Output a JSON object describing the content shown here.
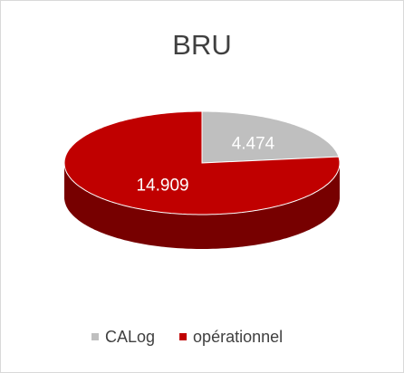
{
  "chart_data": {
    "type": "pie3d",
    "title": "BRU",
    "categories": [
      "CALog",
      "opérationnel"
    ],
    "values": [
      4.474,
      14.909
    ],
    "colors": [
      "#bfbfbf",
      "#c00000"
    ],
    "legend": "bottom"
  }
}
